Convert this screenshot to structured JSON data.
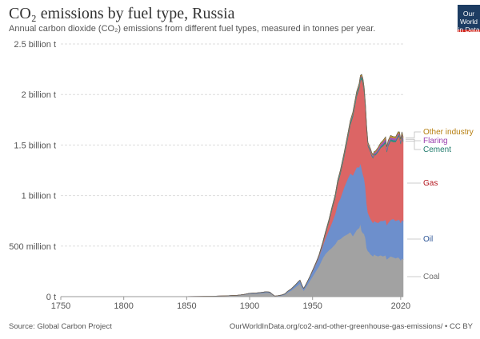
{
  "header": {
    "title": "CO₂ emissions by fuel type, Russia",
    "subtitle": "Annual carbon dioxide (CO₂) emissions from different fuel types, measured in tonnes per year.",
    "logo_line1": "Our World",
    "logo_line2": "in Data"
  },
  "footer": {
    "source": "Source: Global Carbon Project",
    "url": "OurWorldInData.org/co2-and-other-greenhouse-gas-emissions/ • CC BY"
  },
  "chart_data": {
    "type": "area",
    "stacked": true,
    "title": "CO₂ emissions by fuel type, Russia",
    "xlabel": "",
    "ylabel": "",
    "xlim": [
      1750,
      2022
    ],
    "ylim": [
      0,
      2.5
    ],
    "y_unit": "billion t",
    "grid": "horizontal dashed",
    "legend": "right (inline labels)",
    "xticks": [
      "1750",
      "1800",
      "1850",
      "1900",
      "1950",
      "2020"
    ],
    "xtick_values": [
      1750,
      1800,
      1850,
      1900,
      1950,
      2020
    ],
    "yticks": [
      "0 t",
      "500 million t",
      "1 billion t",
      "1.5 billion t",
      "2 billion t",
      "2.5 billion t"
    ],
    "ytick_values": [
      0,
      0.5,
      1,
      1.5,
      2,
      2.5
    ],
    "x": [
      1750,
      1800,
      1830,
      1850,
      1860,
      1870,
      1880,
      1890,
      1895,
      1900,
      1905,
      1910,
      1913,
      1916,
      1918,
      1920,
      1922,
      1925,
      1928,
      1930,
      1933,
      1936,
      1939,
      1940,
      1942,
      1943,
      1945,
      1948,
      1950,
      1953,
      1955,
      1958,
      1960,
      1963,
      1965,
      1968,
      1970,
      1972,
      1975,
      1978,
      1980,
      1982,
      1985,
      1987,
      1988,
      1989,
      1990,
      1991,
      1992,
      1993,
      1994,
      1995,
      1996,
      1997,
      1998,
      1999,
      2000,
      2002,
      2004,
      2006,
      2008,
      2009,
      2010,
      2012,
      2014,
      2016,
      2018,
      2019,
      2020,
      2021,
      2022
    ],
    "series": [
      {
        "name": "Coal",
        "color": "#a2a2a2",
        "values": [
          0,
          0,
          0.001,
          0.002,
          0.003,
          0.005,
          0.008,
          0.012,
          0.018,
          0.028,
          0.03,
          0.035,
          0.04,
          0.038,
          0.02,
          0.004,
          0.006,
          0.01,
          0.02,
          0.04,
          0.06,
          0.09,
          0.12,
          0.13,
          0.08,
          0.06,
          0.1,
          0.16,
          0.2,
          0.26,
          0.3,
          0.38,
          0.42,
          0.46,
          0.48,
          0.52,
          0.56,
          0.57,
          0.6,
          0.62,
          0.64,
          0.6,
          0.66,
          0.68,
          0.72,
          0.65,
          0.63,
          0.62,
          0.58,
          0.48,
          0.45,
          0.44,
          0.42,
          0.41,
          0.4,
          0.42,
          0.41,
          0.4,
          0.41,
          0.4,
          0.41,
          0.37,
          0.38,
          0.4,
          0.39,
          0.38,
          0.39,
          0.38,
          0.36,
          0.38,
          0.37
        ]
      },
      {
        "name": "Oil",
        "color": "#6d8fcc",
        "values": [
          0,
          0,
          0,
          0,
          0,
          0,
          0,
          0.001,
          0.002,
          0.004,
          0.005,
          0.007,
          0.008,
          0.006,
          0.004,
          0.002,
          0.003,
          0.004,
          0.006,
          0.01,
          0.015,
          0.02,
          0.03,
          0.03,
          0.02,
          0.02,
          0.025,
          0.04,
          0.05,
          0.07,
          0.09,
          0.12,
          0.15,
          0.2,
          0.24,
          0.3,
          0.36,
          0.4,
          0.48,
          0.55,
          0.58,
          0.6,
          0.62,
          0.6,
          0.6,
          0.62,
          0.58,
          0.55,
          0.5,
          0.44,
          0.38,
          0.36,
          0.35,
          0.34,
          0.33,
          0.33,
          0.33,
          0.33,
          0.34,
          0.35,
          0.35,
          0.34,
          0.35,
          0.36,
          0.38,
          0.37,
          0.37,
          0.38,
          0.37,
          0.38,
          0.38
        ]
      },
      {
        "name": "Gas",
        "color": "#dc6565",
        "values": [
          0,
          0,
          0,
          0,
          0,
          0,
          0,
          0,
          0,
          0,
          0,
          0,
          0,
          0,
          0,
          0,
          0,
          0,
          0,
          0,
          0,
          0,
          0,
          0,
          0,
          0,
          0,
          0,
          0.005,
          0.008,
          0.01,
          0.02,
          0.04,
          0.08,
          0.12,
          0.16,
          0.2,
          0.24,
          0.3,
          0.4,
          0.48,
          0.58,
          0.7,
          0.78,
          0.82,
          0.88,
          0.9,
          0.85,
          0.78,
          0.72,
          0.66,
          0.66,
          0.66,
          0.64,
          0.64,
          0.65,
          0.66,
          0.7,
          0.72,
          0.74,
          0.76,
          0.72,
          0.76,
          0.78,
          0.76,
          0.78,
          0.82,
          0.82,
          0.78,
          0.82,
          0.78
        ]
      },
      {
        "name": "Cement",
        "color": "#2d8e7e",
        "values": [
          0,
          0,
          0,
          0,
          0,
          0,
          0,
          0,
          0,
          0.001,
          0.001,
          0.001,
          0.001,
          0.001,
          0,
          0,
          0,
          0.001,
          0.001,
          0.002,
          0.002,
          0.003,
          0.003,
          0.003,
          0.002,
          0.002,
          0.003,
          0.004,
          0.005,
          0.007,
          0.009,
          0.012,
          0.015,
          0.017,
          0.019,
          0.021,
          0.023,
          0.024,
          0.025,
          0.026,
          0.026,
          0.027,
          0.028,
          0.028,
          0.028,
          0.028,
          0.028,
          0.027,
          0.024,
          0.02,
          0.016,
          0.014,
          0.013,
          0.013,
          0.011,
          0.012,
          0.013,
          0.014,
          0.016,
          0.019,
          0.02,
          0.015,
          0.016,
          0.019,
          0.02,
          0.017,
          0.018,
          0.018,
          0.018,
          0.019,
          0.019
        ]
      },
      {
        "name": "Flaring",
        "color": "#a652ba",
        "values": [
          0,
          0,
          0,
          0,
          0,
          0,
          0,
          0,
          0,
          0,
          0,
          0,
          0,
          0,
          0,
          0,
          0,
          0,
          0,
          0,
          0,
          0,
          0,
          0,
          0,
          0,
          0,
          0,
          0,
          0,
          0,
          0.001,
          0.002,
          0.003,
          0.004,
          0.005,
          0.006,
          0.007,
          0.008,
          0.008,
          0.008,
          0.008,
          0.009,
          0.009,
          0.009,
          0.009,
          0.009,
          0.009,
          0.009,
          0.009,
          0.01,
          0.011,
          0.012,
          0.013,
          0.014,
          0.015,
          0.017,
          0.02,
          0.022,
          0.024,
          0.026,
          0.025,
          0.024,
          0.022,
          0.02,
          0.02,
          0.018,
          0.017,
          0.016,
          0.016,
          0.016
        ]
      },
      {
        "name": "Other industry",
        "color": "#c89b23",
        "values": [
          0,
          0,
          0,
          0,
          0,
          0,
          0,
          0,
          0,
          0,
          0,
          0,
          0,
          0,
          0,
          0,
          0,
          0,
          0,
          0,
          0,
          0,
          0,
          0,
          0,
          0,
          0,
          0,
          0,
          0,
          0,
          0,
          0.002,
          0.003,
          0.004,
          0.005,
          0.006,
          0.007,
          0.008,
          0.009,
          0.01,
          0.011,
          0.012,
          0.012,
          0.012,
          0.012,
          0.013,
          0.013,
          0.012,
          0.011,
          0.01,
          0.01,
          0.01,
          0.01,
          0.01,
          0.01,
          0.011,
          0.011,
          0.012,
          0.013,
          0.014,
          0.012,
          0.013,
          0.014,
          0.014,
          0.014,
          0.015,
          0.015,
          0.014,
          0.015,
          0.015
        ]
      }
    ],
    "end_labels": [
      {
        "name": "Other industry",
        "color": "#b67e0e"
      },
      {
        "name": "Flaring",
        "color": "#9a3eae"
      },
      {
        "name": "Cement",
        "color": "#1f7a6b"
      },
      {
        "name": "Gas",
        "color": "#b3141c"
      },
      {
        "name": "Oil",
        "color": "#2d5596"
      },
      {
        "name": "Coal",
        "color": "#6b6b6b"
      }
    ]
  }
}
